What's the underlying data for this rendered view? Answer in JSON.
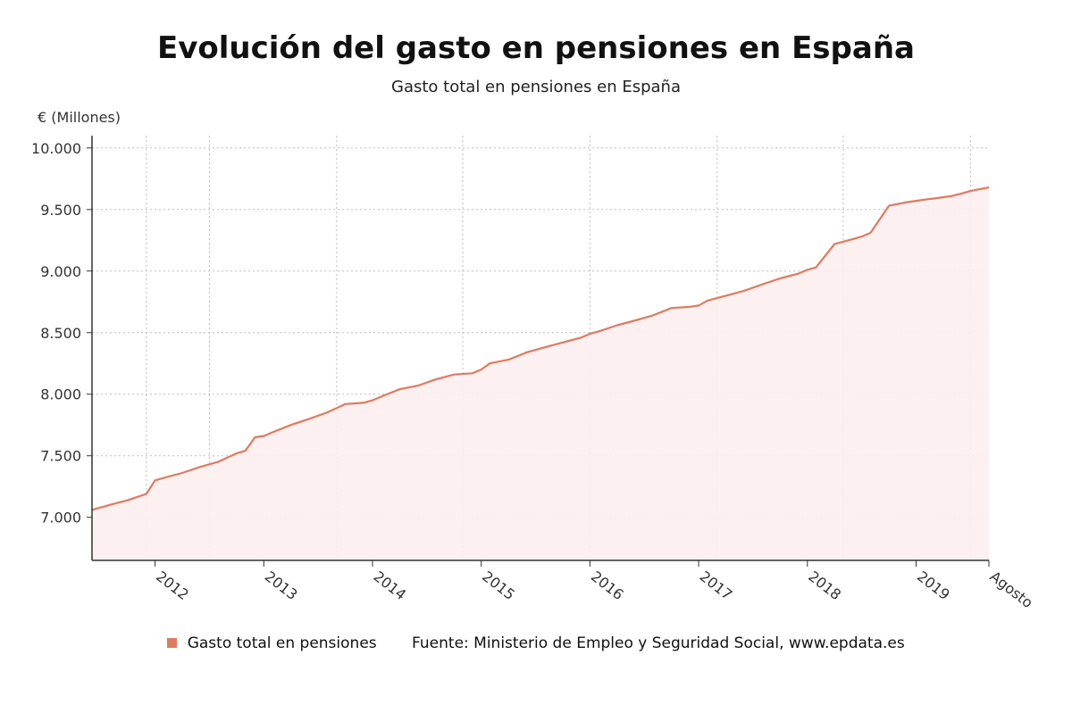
{
  "title": "Evolución del gasto en pensiones en España",
  "subtitle": "Gasto total en pensiones en España",
  "y_unit": "€ (Millones)",
  "legend": {
    "series_name": "Gasto total en pensiones",
    "source": "Fuente: Ministerio de Empleo y Seguridad Social, www.epdata.es"
  },
  "colors": {
    "line": "#e07a5f",
    "fill": "#fdeeee",
    "grid": "#bdbdbd",
    "axis": "#333333"
  },
  "chart_data": {
    "type": "area",
    "title": "Evolución del gasto en pensiones en España",
    "subtitle": "Gasto total en pensiones en España",
    "ylabel": "€ (Millones)",
    "xlabel": "",
    "ylim": [
      6650,
      10100
    ],
    "xlim": [
      2011.42,
      2019.67
    ],
    "yticks": [
      7000,
      7500,
      8000,
      8500,
      9000,
      9500,
      10000
    ],
    "ytick_labels": [
      "7.000",
      "7.500",
      "8.000",
      "8.500",
      "9.000",
      "9.500",
      "10.000"
    ],
    "xtick_labels": [
      {
        "x": 2012.0,
        "label": "2012"
      },
      {
        "x": 2013.0,
        "label": "2013"
      },
      {
        "x": 2014.0,
        "label": "2014"
      },
      {
        "x": 2015.0,
        "label": "2015"
      },
      {
        "x": 2016.0,
        "label": "2016"
      },
      {
        "x": 2017.0,
        "label": "2017"
      },
      {
        "x": 2018.0,
        "label": "2018"
      },
      {
        "x": 2019.0,
        "label": "2019"
      },
      {
        "x": 2019.67,
        "label": "Agosto"
      }
    ],
    "vgrid_x": [
      2011.92,
      2012.5,
      2013.67,
      2014.83,
      2016.0,
      2017.17,
      2018.33,
      2019.5
    ],
    "grid": true,
    "legend_position": "bottom",
    "series": [
      {
        "name": "Gasto total en pensiones",
        "x": [
          2011.42,
          2011.58,
          2011.75,
          2011.92,
          2012.0,
          2012.08,
          2012.25,
          2012.42,
          2012.58,
          2012.75,
          2012.83,
          2012.92,
          2013.0,
          2013.08,
          2013.25,
          2013.42,
          2013.58,
          2013.75,
          2013.92,
          2014.0,
          2014.08,
          2014.25,
          2014.42,
          2014.58,
          2014.75,
          2014.92,
          2015.0,
          2015.08,
          2015.25,
          2015.42,
          2015.58,
          2015.75,
          2015.92,
          2016.0,
          2016.08,
          2016.25,
          2016.42,
          2016.58,
          2016.75,
          2016.92,
          2017.0,
          2017.08,
          2017.25,
          2017.42,
          2017.58,
          2017.75,
          2017.92,
          2018.0,
          2018.08,
          2018.25,
          2018.42,
          2018.5,
          2018.58,
          2018.75,
          2018.92,
          2019.0,
          2019.08,
          2019.17,
          2019.33,
          2019.42,
          2019.5,
          2019.67
        ],
        "y": [
          7060,
          7100,
          7140,
          7190,
          7300,
          7320,
          7360,
          7410,
          7450,
          7520,
          7540,
          7650,
          7660,
          7690,
          7750,
          7800,
          7850,
          7920,
          7930,
          7950,
          7980,
          8040,
          8070,
          8120,
          8160,
          8170,
          8200,
          8250,
          8280,
          8340,
          8380,
          8420,
          8460,
          8490,
          8510,
          8560,
          8600,
          8640,
          8700,
          8710,
          8720,
          8760,
          8800,
          8840,
          8890,
          8940,
          8980,
          9010,
          9030,
          9220,
          9260,
          9280,
          9310,
          9530,
          9560,
          9570,
          9580,
          9590,
          9610,
          9630,
          9650,
          9680
        ]
      }
    ]
  }
}
